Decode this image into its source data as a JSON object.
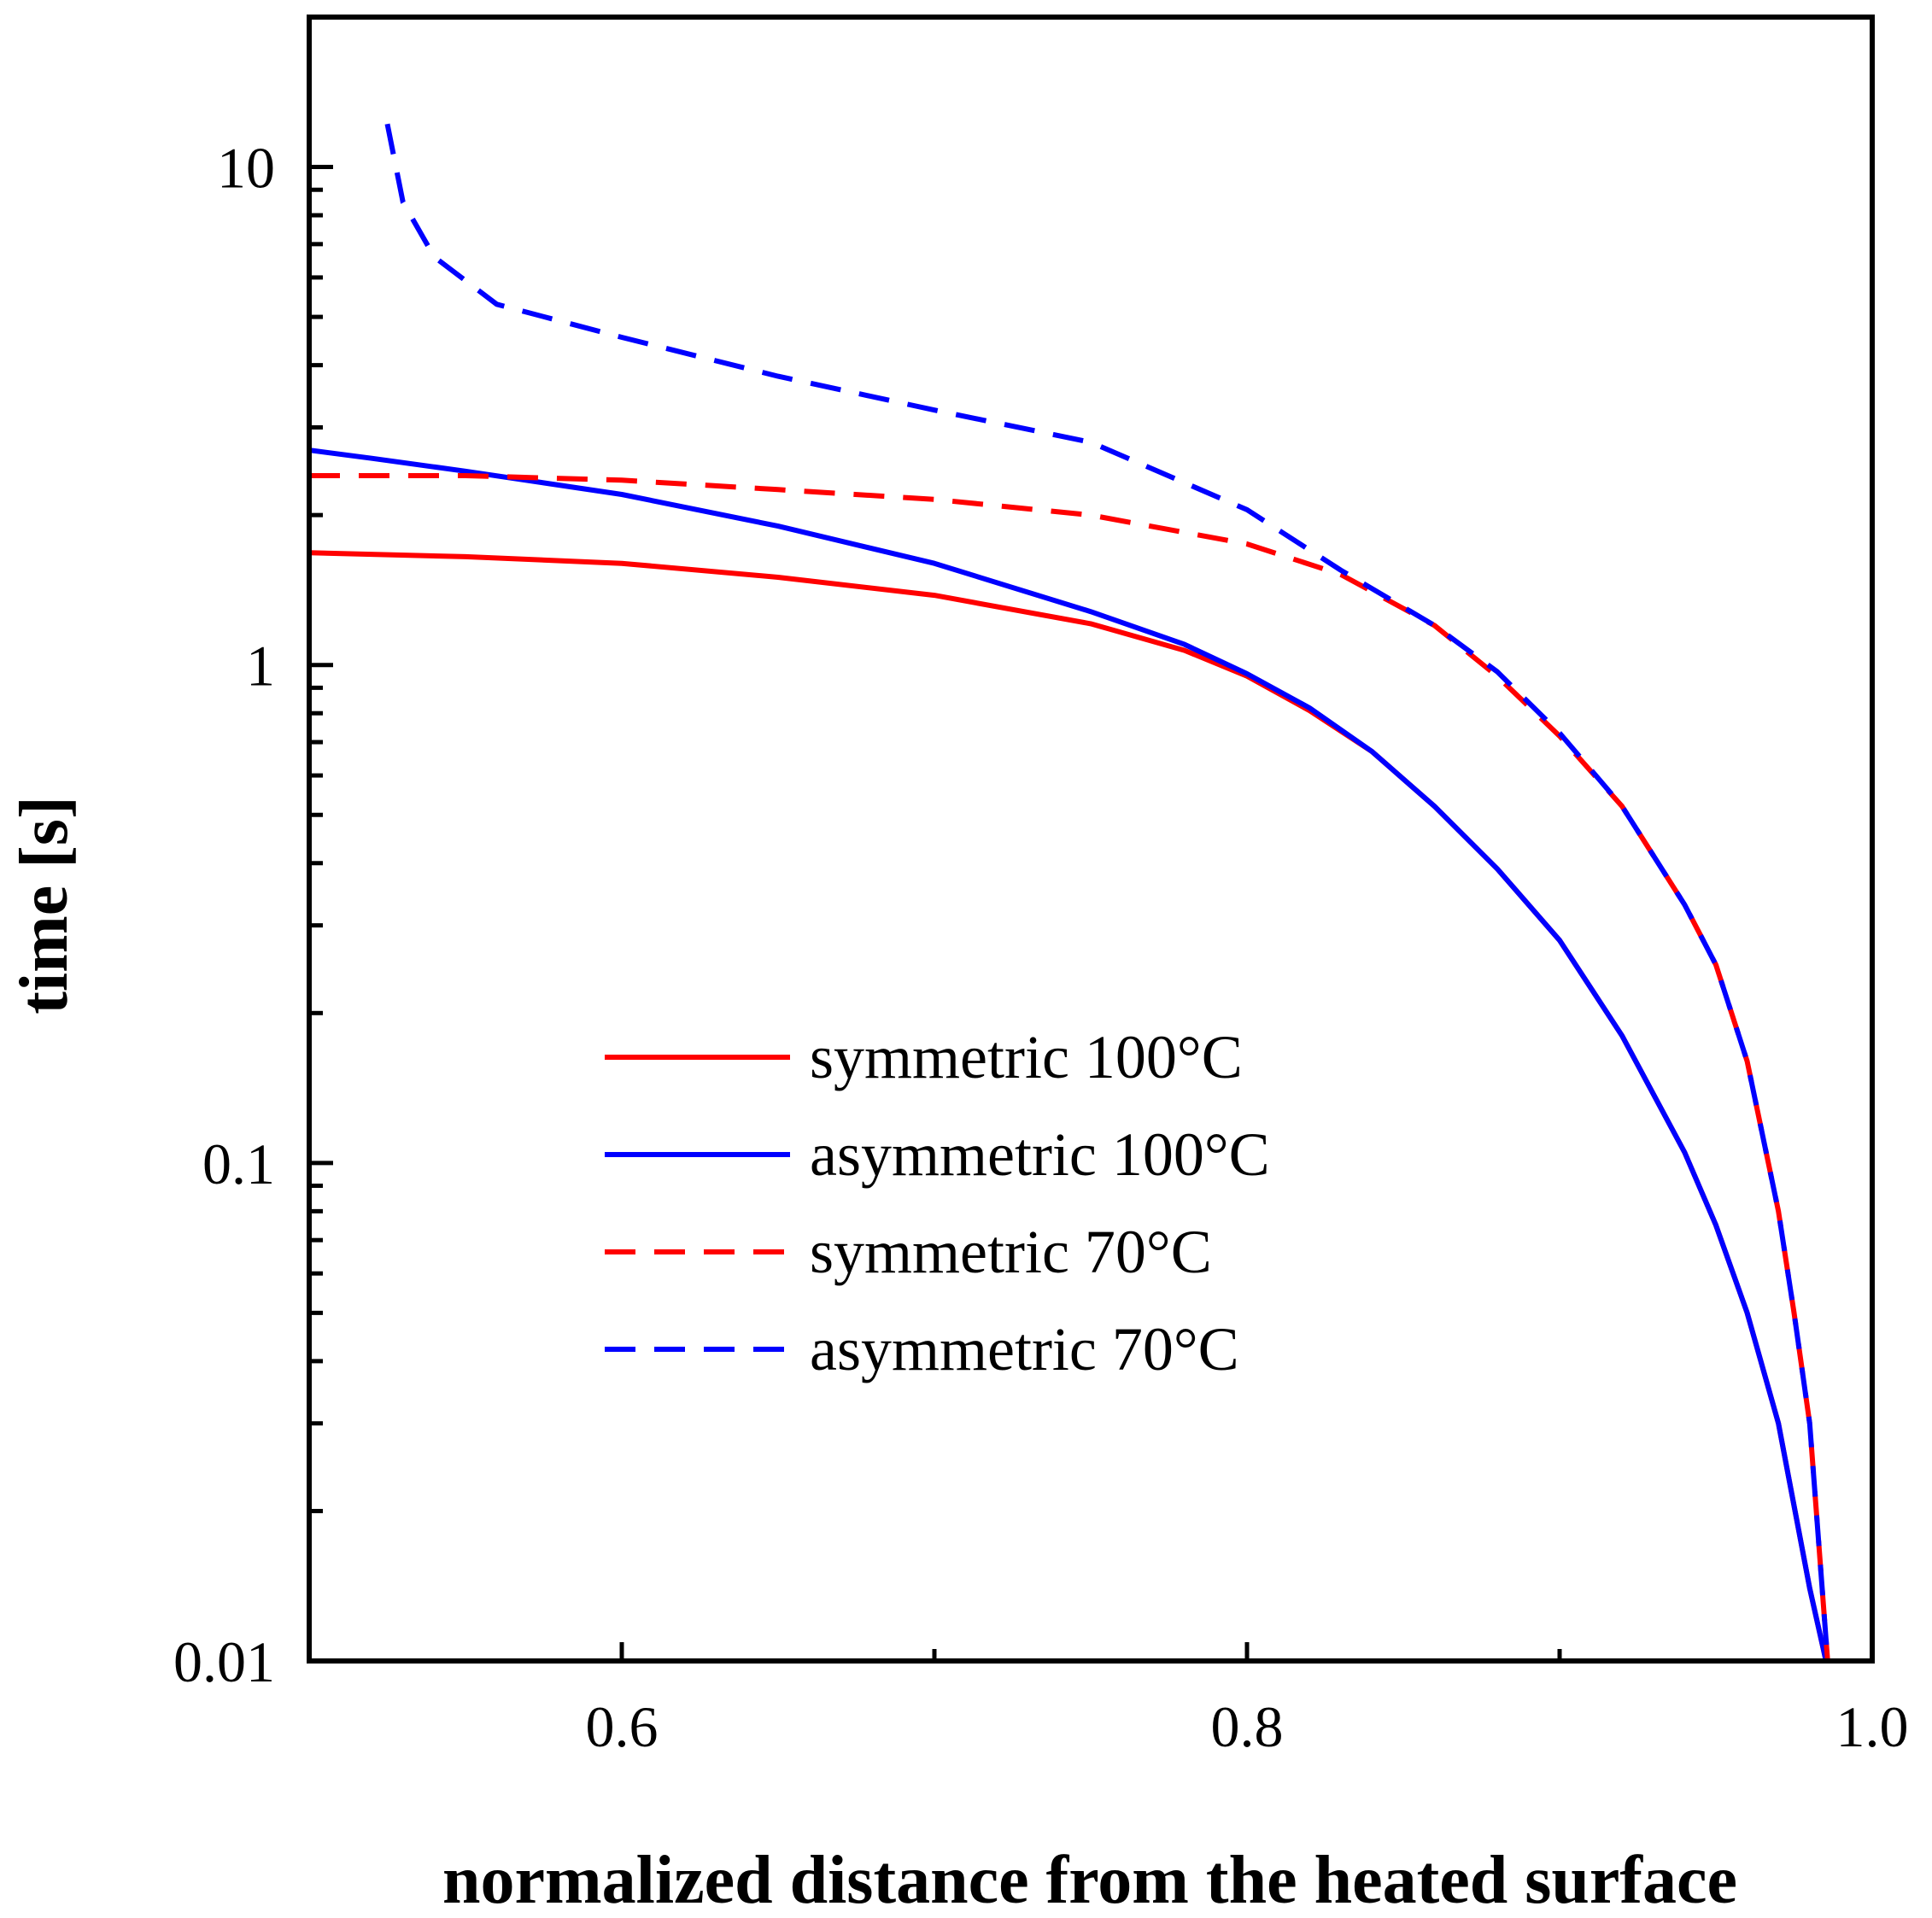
{
  "chart_data": {
    "type": "line",
    "title": "",
    "xlabel": "normalized distance from the heated surface",
    "ylabel": "time [s]",
    "xlim": [
      0.5,
      1.0
    ],
    "ylim": [
      0.01,
      20
    ],
    "yscale": "log",
    "x_ticks": [
      0.6,
      0.8,
      1.0
    ],
    "x_tick_labels": [
      "0.6",
      "0.8",
      "1.0"
    ],
    "y_ticks": [
      0.01,
      0.1,
      1,
      10
    ],
    "y_tick_labels": [
      "0.01",
      "0.1",
      "1",
      "10"
    ],
    "legend_position": "center",
    "series": [
      {
        "name": "symmetric 100°C",
        "color": "#ff0000",
        "dash": "solid",
        "points": [
          [
            0.5,
            1.68
          ],
          [
            0.55,
            1.65
          ],
          [
            0.6,
            1.6
          ],
          [
            0.65,
            1.5
          ],
          [
            0.7,
            1.38
          ],
          [
            0.75,
            1.21
          ],
          [
            0.78,
            1.07
          ],
          [
            0.8,
            0.95
          ],
          [
            0.82,
            0.81
          ],
          [
            0.84,
            0.67
          ],
          [
            0.86,
            0.52
          ],
          [
            0.88,
            0.39
          ],
          [
            0.9,
            0.28
          ],
          [
            0.92,
            0.18
          ],
          [
            0.94,
            0.105
          ],
          [
            0.95,
            0.075
          ],
          [
            0.96,
            0.05
          ],
          [
            0.97,
            0.03
          ],
          [
            0.98,
            0.014
          ],
          [
            0.986,
            0.0095
          ]
        ]
      },
      {
        "name": "asymmetric 100°C",
        "color": "#0000ff",
        "dash": "solid",
        "points": [
          [
            0.5,
            2.7
          ],
          [
            0.52,
            2.6
          ],
          [
            0.55,
            2.45
          ],
          [
            0.6,
            2.2
          ],
          [
            0.65,
            1.9
          ],
          [
            0.7,
            1.6
          ],
          [
            0.75,
            1.28
          ],
          [
            0.78,
            1.1
          ],
          [
            0.8,
            0.96
          ],
          [
            0.82,
            0.82
          ],
          [
            0.84,
            0.67
          ],
          [
            0.86,
            0.52
          ],
          [
            0.88,
            0.39
          ],
          [
            0.9,
            0.28
          ],
          [
            0.92,
            0.18
          ],
          [
            0.94,
            0.105
          ],
          [
            0.95,
            0.075
          ],
          [
            0.96,
            0.05
          ],
          [
            0.97,
            0.03
          ],
          [
            0.98,
            0.014
          ],
          [
            0.986,
            0.0095
          ]
        ]
      },
      {
        "name": "symmetric 70°C",
        "color": "#ff0000",
        "dash": "dashed",
        "points": [
          [
            0.5,
            2.4
          ],
          [
            0.55,
            2.4
          ],
          [
            0.6,
            2.35
          ],
          [
            0.65,
            2.25
          ],
          [
            0.7,
            2.15
          ],
          [
            0.75,
            2.0
          ],
          [
            0.8,
            1.75
          ],
          [
            0.83,
            1.52
          ],
          [
            0.86,
            1.2
          ],
          [
            0.88,
            0.95
          ],
          [
            0.9,
            0.72
          ],
          [
            0.92,
            0.52
          ],
          [
            0.94,
            0.33
          ],
          [
            0.95,
            0.25
          ],
          [
            0.96,
            0.16
          ],
          [
            0.97,
            0.08
          ],
          [
            0.975,
            0.05
          ],
          [
            0.98,
            0.03
          ],
          [
            0.986,
            0.0095
          ]
        ]
      },
      {
        "name": "asymmetric 70°C",
        "color": "#0000ff",
        "dash": "dashed",
        "points": [
          [
            0.525,
            12.2
          ],
          [
            0.53,
            8.5
          ],
          [
            0.54,
            6.6
          ],
          [
            0.56,
            5.3
          ],
          [
            0.6,
            4.55
          ],
          [
            0.65,
            3.8
          ],
          [
            0.7,
            3.25
          ],
          [
            0.75,
            2.8
          ],
          [
            0.8,
            2.05
          ],
          [
            0.83,
            1.55
          ],
          [
            0.86,
            1.2
          ],
          [
            0.88,
            0.97
          ],
          [
            0.9,
            0.73
          ],
          [
            0.92,
            0.52
          ],
          [
            0.94,
            0.33
          ],
          [
            0.95,
            0.25
          ],
          [
            0.96,
            0.16
          ],
          [
            0.97,
            0.08
          ],
          [
            0.975,
            0.05
          ],
          [
            0.98,
            0.03
          ],
          [
            0.986,
            0.0095
          ]
        ]
      }
    ]
  }
}
